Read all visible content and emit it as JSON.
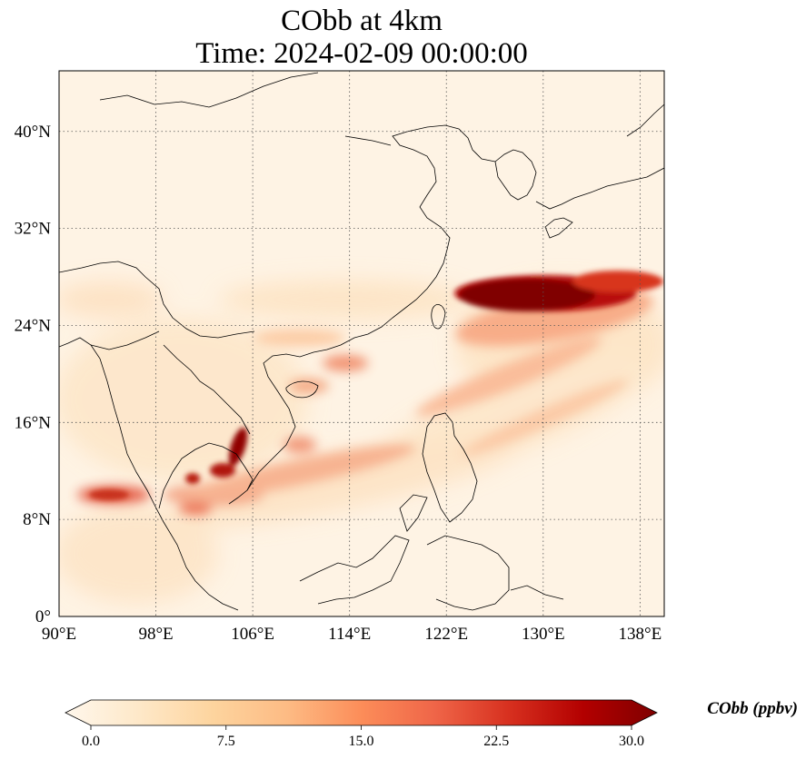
{
  "title": {
    "line1": "CObb at 4km",
    "line2": "Time: 2024-02-09 00:00:00"
  },
  "map": {
    "lon_range": [
      90,
      140
    ],
    "lat_range": [
      0,
      45
    ],
    "lon_ticks": [
      {
        "value": 90,
        "label": "90°E"
      },
      {
        "value": 98,
        "label": "98°E"
      },
      {
        "value": 106,
        "label": "106°E"
      },
      {
        "value": 114,
        "label": "114°E"
      },
      {
        "value": 122,
        "label": "122°E"
      },
      {
        "value": 130,
        "label": "130°E"
      },
      {
        "value": 138,
        "label": "138°E"
      }
    ],
    "lat_ticks": [
      {
        "value": 0,
        "label": "0°"
      },
      {
        "value": 8,
        "label": "8°N"
      },
      {
        "value": 16,
        "label": "16°N"
      },
      {
        "value": 24,
        "label": "24°N"
      },
      {
        "value": 32,
        "label": "32°N"
      },
      {
        "value": 40,
        "label": "40°N"
      }
    ],
    "gridlines": true,
    "background_color": "#fef3e4",
    "coastline_color": "#000000"
  },
  "colorbar": {
    "label": "CObb (ppbv)",
    "min": 0,
    "max": 30,
    "extend": "both",
    "ticks": [
      "0.0",
      "7.5",
      "15.0",
      "22.5",
      "30.0"
    ],
    "colormap": "OrRd",
    "stops": [
      "#fff7ec",
      "#fee8c8",
      "#fdd49e",
      "#fdbb84",
      "#fc8d59",
      "#ef6548",
      "#d7301f",
      "#b30000",
      "#7f0000"
    ]
  }
}
